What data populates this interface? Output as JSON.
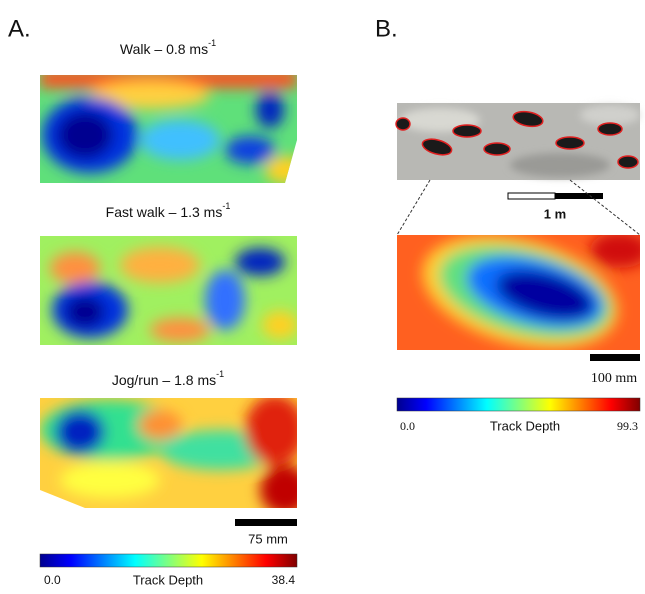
{
  "panel_a": {
    "label": "A.",
    "maps": [
      {
        "title": "Walk – 0.8 ms",
        "title_superscript": "-1"
      },
      {
        "title": "Fast walk – 1.3 ms",
        "title_superscript": "-1"
      },
      {
        "title": "Jog/run – 1.8 ms",
        "title_superscript": "-1"
      }
    ],
    "scale_bar": "75 mm",
    "colorbar": {
      "min": "0.0",
      "label": "Track Depth",
      "max": "38.4"
    }
  },
  "panel_b": {
    "label": "B.",
    "photo_scale_bar": "1 m",
    "scale_bar": "100 mm",
    "colorbar": {
      "min": "0.0",
      "label": "Track Depth",
      "max": "99.3"
    }
  }
}
